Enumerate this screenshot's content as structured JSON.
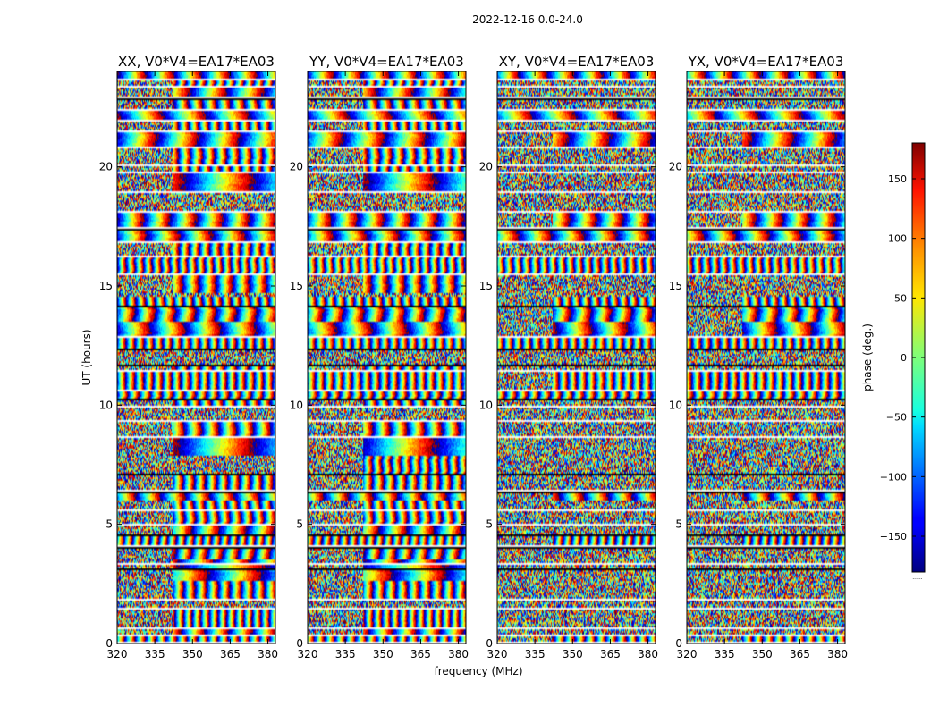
{
  "figure_title": "2022-12-16 0.0-24.0",
  "colorbar": {
    "label": "phase (deg.)",
    "min": -180,
    "max": 180,
    "ticks": [
      150,
      100,
      50,
      0,
      -50,
      -100,
      -150
    ],
    "tick_labels": [
      "150",
      "100",
      "50",
      "0",
      "−50",
      "−100",
      "−150"
    ],
    "colormap": "jet",
    "extra_label": "......"
  },
  "chart_data": [
    {
      "type": "heatmap",
      "title": "XX, V0*V4=EA17*EA03",
      "xlabel": "",
      "ylabel": "UT (hours)",
      "xlim": [
        320,
        383
      ],
      "ylim": [
        0,
        24
      ],
      "x_ticks": [
        "320",
        "335",
        "350",
        "365",
        "380"
      ],
      "y_ticks": [
        "0",
        "5",
        "10",
        "15",
        "20"
      ],
      "value": "phase (deg.)",
      "seed": 11,
      "coherent_strength": 0.9,
      "vertical_offset": 0
    },
    {
      "type": "heatmap",
      "title": "YY, V0*V4=EA17*EA03",
      "xlabel": "frequency (MHz)",
      "ylabel": "",
      "xlim": [
        320,
        383
      ],
      "ylim": [
        0,
        24
      ],
      "x_ticks": [
        "320",
        "335",
        "350",
        "365",
        "380"
      ],
      "y_ticks": [
        "0",
        "5",
        "10",
        "15",
        "20"
      ],
      "value": "phase (deg.)",
      "seed": 23,
      "coherent_strength": 0.95,
      "vertical_offset": 40
    },
    {
      "type": "heatmap",
      "title": "XY, V0*V4=EA17*EA03",
      "xlabel": "",
      "ylabel": "",
      "xlim": [
        320,
        383
      ],
      "ylim": [
        0,
        24
      ],
      "x_ticks": [
        "320",
        "335",
        "350",
        "365",
        "380"
      ],
      "y_ticks": [
        "0",
        "5",
        "10",
        "15",
        "20"
      ],
      "value": "phase (deg.)",
      "seed": 37,
      "coherent_strength": 0.35,
      "vertical_offset": 90
    },
    {
      "type": "heatmap",
      "title": "YX, V0*V4=EA17*EA03",
      "xlabel": "",
      "ylabel": "",
      "xlim": [
        320,
        383
      ],
      "ylim": [
        0,
        24
      ],
      "x_ticks": [
        "320",
        "335",
        "350",
        "365",
        "380"
      ],
      "y_ticks": [
        "0",
        "5",
        "10",
        "15",
        "20"
      ],
      "value": "phase (deg.)",
      "seed": 53,
      "coherent_strength": 0.4,
      "vertical_offset": 140
    }
  ]
}
